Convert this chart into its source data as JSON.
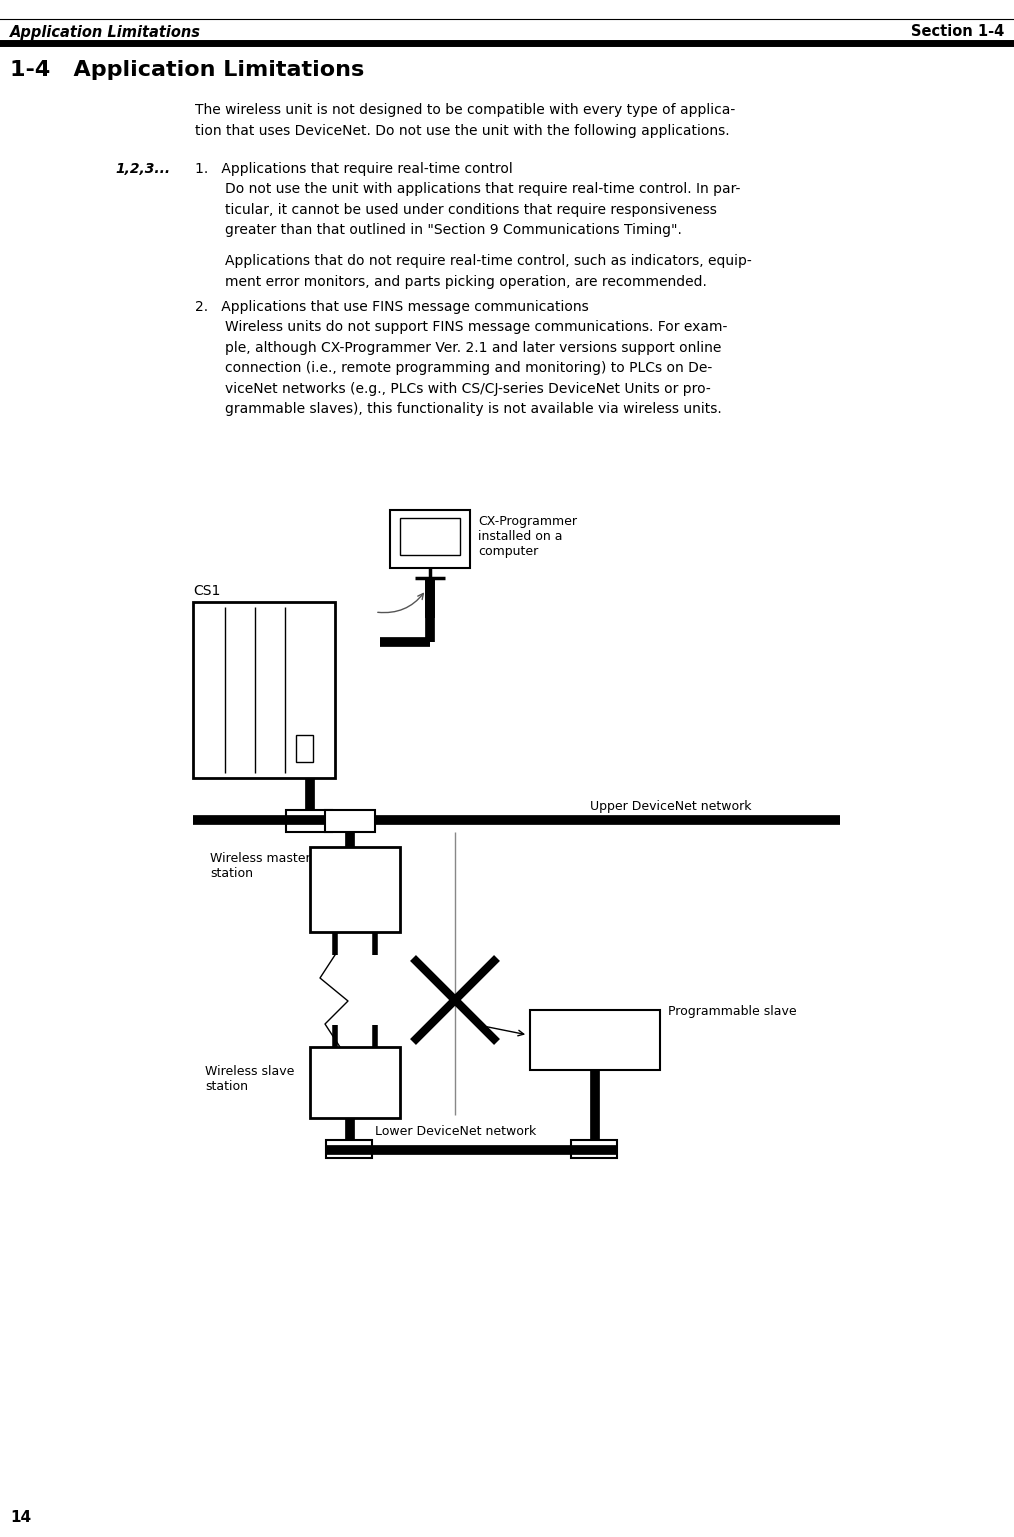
{
  "header_left": "Application Limitations",
  "header_right": "Section 1-4",
  "section_title": "1-4   Application Limitations",
  "page_number": "14",
  "marker_label": "1,2,3...",
  "label_cx": "CX-Programmer\ninstalled on a\ncomputer",
  "label_cs1": "CS1",
  "label_upper_net": "Upper DeviceNet network",
  "label_wireless_master": "Wireless master\nstation",
  "label_wireless_slave": "Wireless slave\nstation",
  "label_prog_slave": "Programmable slave",
  "label_lower_net": "Lower DeviceNet network",
  "bg_color": "#ffffff",
  "text_color": "#000000"
}
